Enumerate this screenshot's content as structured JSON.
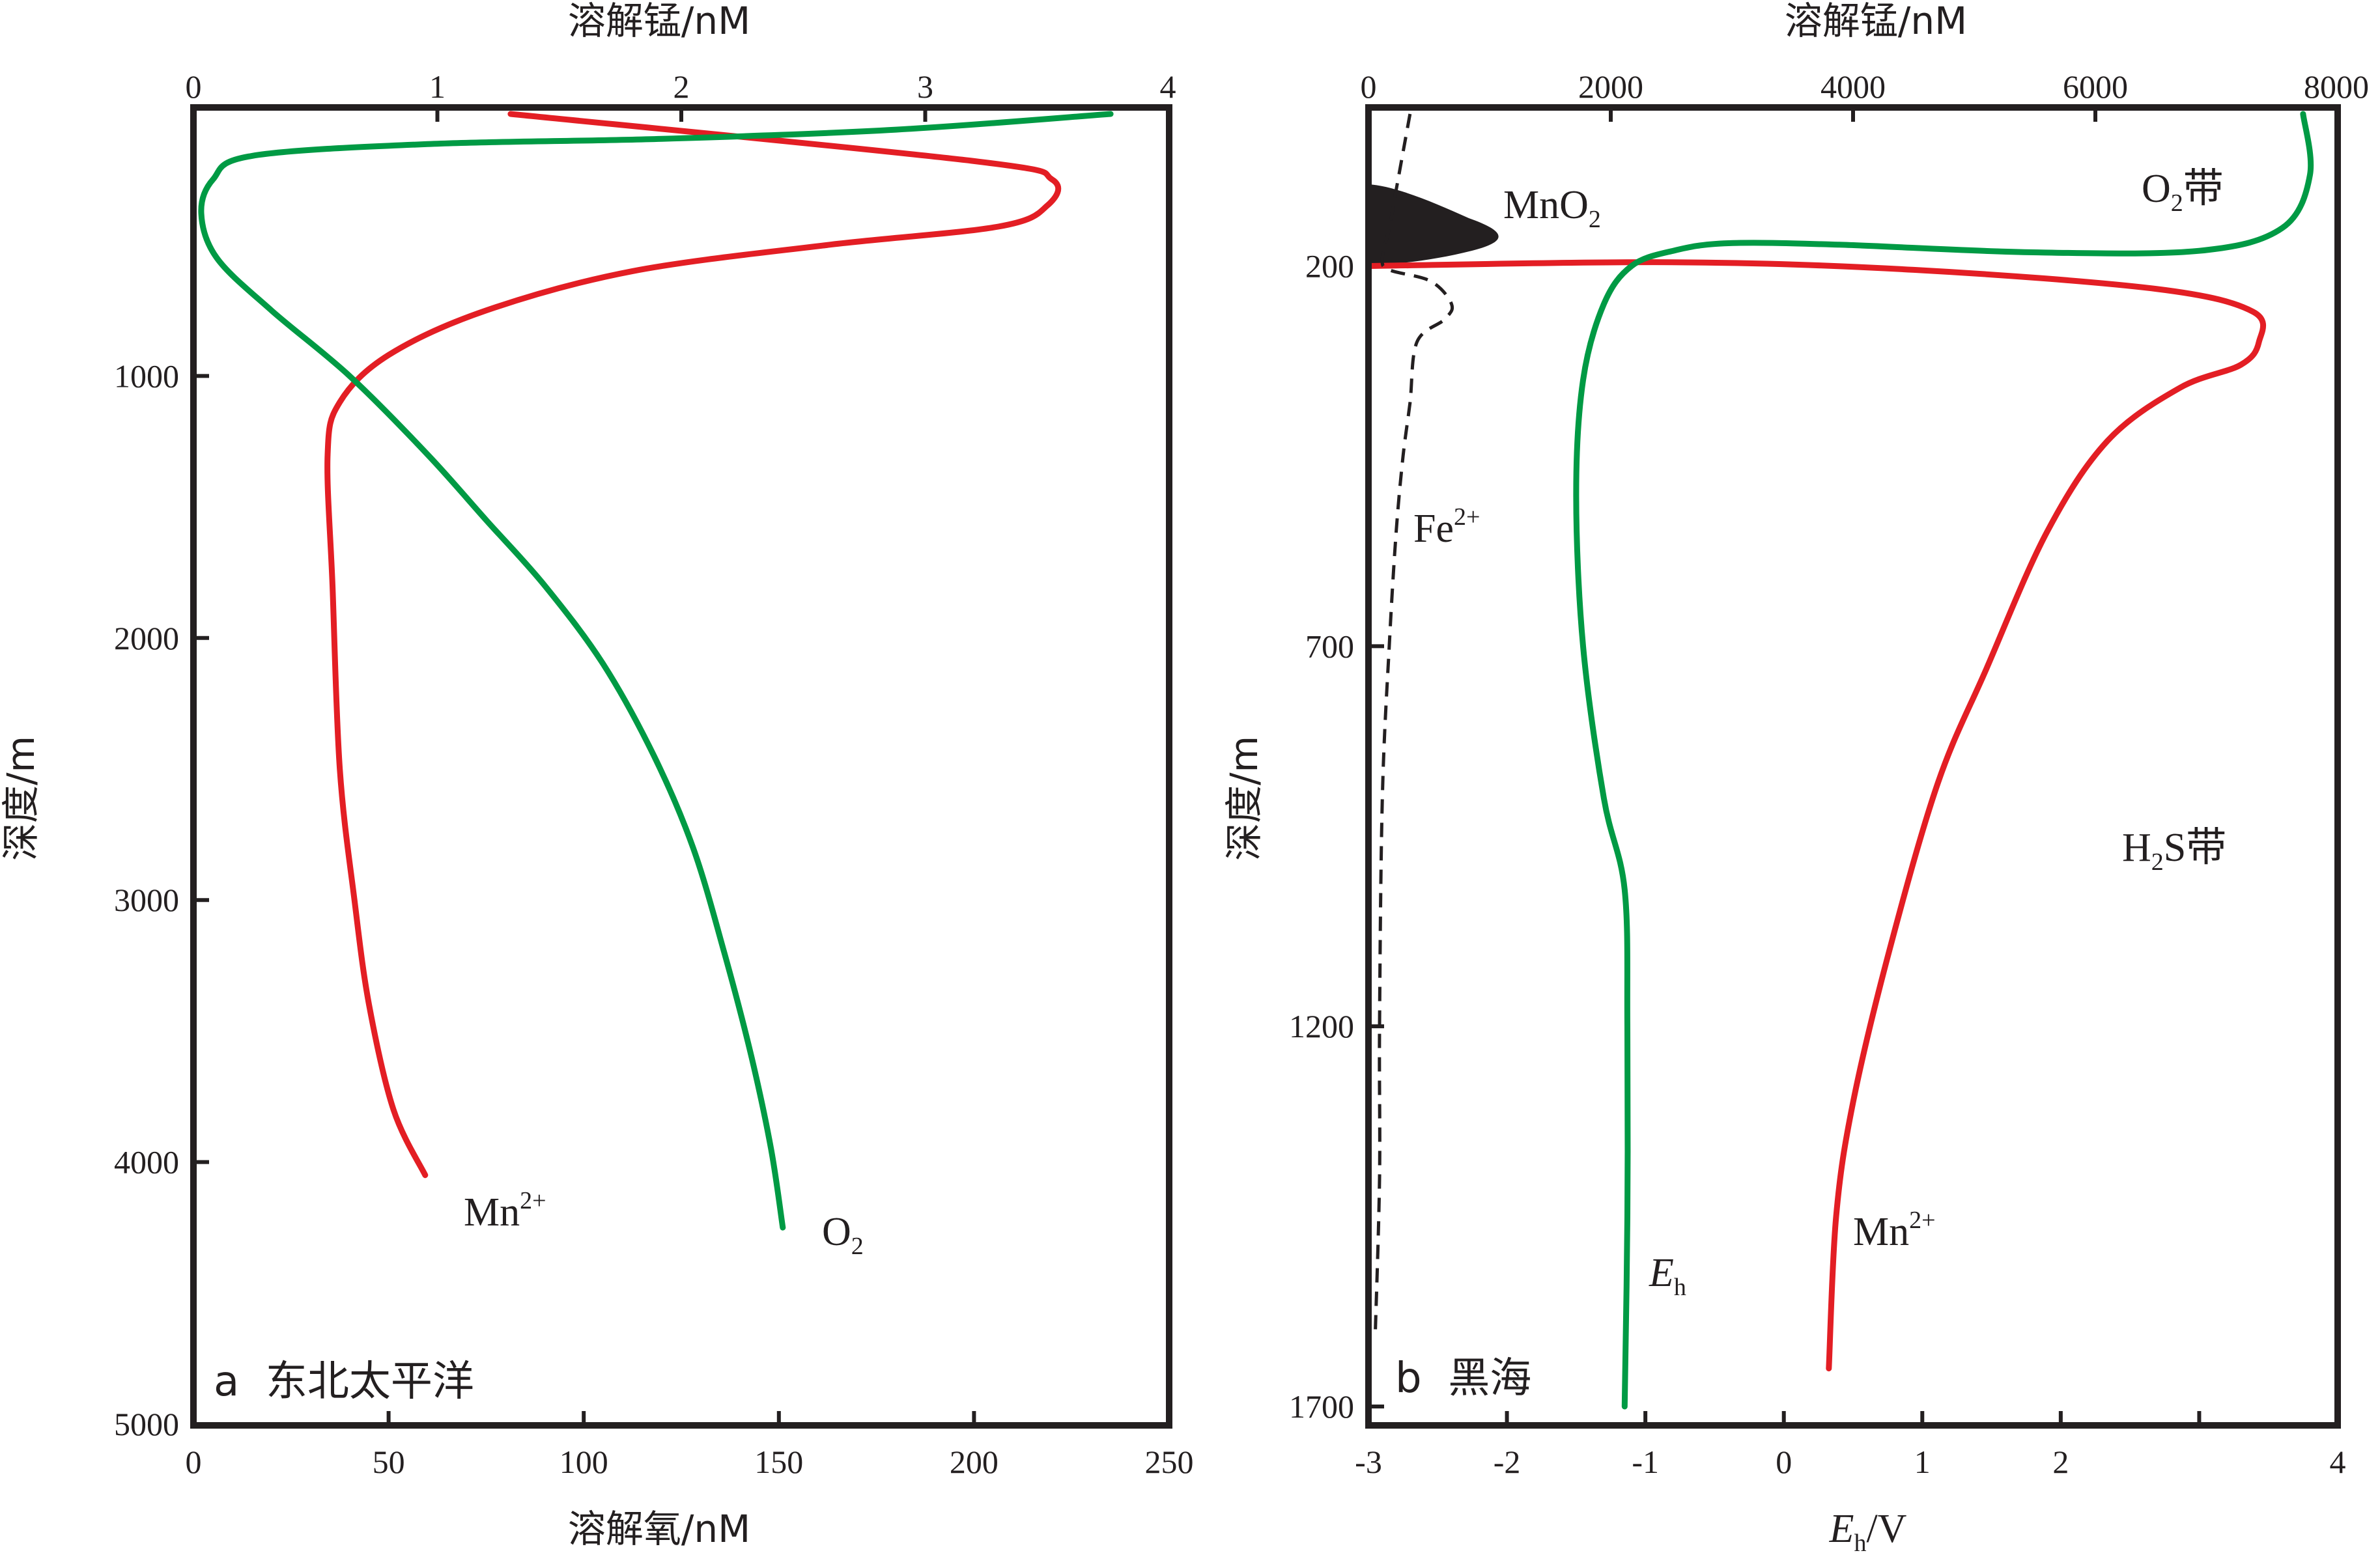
{
  "colors": {
    "mn": "#e31e24",
    "o2": "#009a44",
    "eh": "#009a44",
    "fe": "#231f20",
    "mno2": "#231f20",
    "axis": "#231f20"
  },
  "chart_data": [
    {
      "type": "line",
      "panel_label": "a  东北太平洋",
      "top_axis": {
        "label": "溶解锰/nM",
        "range": [
          0,
          4
        ],
        "ticks": [
          "0",
          "1",
          "2",
          "3",
          "4"
        ]
      },
      "bottom_axis": {
        "label": "溶解氧/nM",
        "range": [
          0,
          250
        ],
        "ticks": [
          "0",
          "50",
          "100",
          "150",
          "200",
          "250"
        ]
      },
      "y_axis": {
        "label": "深度/m",
        "range": [
          0,
          5000
        ],
        "inverted": true,
        "ticks": [
          "1000",
          "2000",
          "3000",
          "4000",
          "5000"
        ]
      },
      "series": [
        {
          "name": "Mn",
          "name_sup": "2+",
          "axis": "top",
          "color": "#e31e24",
          "points": [
            [
              1.3,
              0
            ],
            [
              3.2,
              180
            ],
            [
              3.52,
              250
            ],
            [
              3.5,
              350
            ],
            [
              3.3,
              430
            ],
            [
              2.6,
              500
            ],
            [
              1.8,
              600
            ],
            [
              1.2,
              750
            ],
            [
              0.8,
              920
            ],
            [
              0.6,
              1100
            ],
            [
              0.55,
              1300
            ],
            [
              0.57,
              1800
            ],
            [
              0.6,
              2500
            ],
            [
              0.66,
              3000
            ],
            [
              0.72,
              3400
            ],
            [
              0.82,
              3800
            ],
            [
              0.95,
              4050
            ]
          ]
        },
        {
          "name": "O",
          "name_sub": "2",
          "axis": "bottom",
          "color": "#009a44",
          "points": [
            [
              235,
              0
            ],
            [
              180,
              60
            ],
            [
              120,
              95
            ],
            [
              60,
              115
            ],
            [
              15,
              160
            ],
            [
              5,
              250
            ],
            [
              2,
              380
            ],
            [
              6,
              550
            ],
            [
              20,
              750
            ],
            [
              40,
              1000
            ],
            [
              60,
              1300
            ],
            [
              75,
              1550
            ],
            [
              90,
              1800
            ],
            [
              105,
              2100
            ],
            [
              118,
              2450
            ],
            [
              128,
              2800
            ],
            [
              136,
              3200
            ],
            [
              143,
              3600
            ],
            [
              148,
              3950
            ],
            [
              151,
              4250
            ]
          ]
        }
      ]
    },
    {
      "type": "line",
      "panel_label": "b  黑海",
      "top_axis": {
        "label": "溶解锰/nM",
        "range": [
          0,
          8000
        ],
        "ticks": [
          "0",
          "2000",
          "4000",
          "6000",
          "8000"
        ]
      },
      "bottom_axis": {
        "label": "E",
        "label_sub": "h",
        "label_unit": "/V",
        "range": [
          -3,
          4
        ],
        "ticks": [
          "-3",
          "-2",
          "-1",
          "0",
          "1",
          "2",
          "4"
        ]
      },
      "y_axis": {
        "label": "深度/m",
        "range": [
          0,
          1700
        ],
        "inverted": true,
        "ticks": [
          "200",
          "700",
          "1200",
          "1700"
        ]
      },
      "annotations": [
        "MnO₂",
        "O₂带",
        "H₂S带",
        "Fe²⁺",
        "Mn²⁺",
        "Eₕ"
      ],
      "series": [
        {
          "name": "Mn",
          "name_sup": "2+",
          "axis": "top",
          "color": "#e31e24",
          "points": [
            [
              0,
              200
            ],
            [
              2500,
              195
            ],
            [
              4500,
              205
            ],
            [
              6500,
              230
            ],
            [
              7300,
              260
            ],
            [
              7350,
              300
            ],
            [
              7200,
              330
            ],
            [
              6700,
              360
            ],
            [
              6100,
              430
            ],
            [
              5600,
              550
            ],
            [
              5100,
              730
            ],
            [
              4700,
              880
            ],
            [
              4300,
              1100
            ],
            [
              4000,
              1300
            ],
            [
              3860,
              1450
            ],
            [
              3800,
              1650
            ]
          ]
        },
        {
          "name": "E",
          "name_sub": "h",
          "axis": "bottom",
          "color": "#009a44",
          "points": [
            [
              3.75,
              0
            ],
            [
              3.8,
              80
            ],
            [
              3.6,
              150
            ],
            [
              3.0,
              180
            ],
            [
              1.8,
              182
            ],
            [
              0.4,
              172
            ],
            [
              -0.4,
              170
            ],
            [
              -0.8,
              180
            ],
            [
              -1.1,
              200
            ],
            [
              -1.3,
              250
            ],
            [
              -1.45,
              350
            ],
            [
              -1.5,
              500
            ],
            [
              -1.45,
              700
            ],
            [
              -1.3,
              900
            ],
            [
              -1.15,
              1020
            ],
            [
              -1.13,
              1200
            ],
            [
              -1.13,
              1450
            ],
            [
              -1.15,
              1700
            ]
          ]
        },
        {
          "name": "Fe",
          "name_sup": "2+",
          "axis": "bottom",
          "dashed": true,
          "color": "#231f20",
          "points": [
            [
              -2.7,
              0
            ],
            [
              -2.8,
              100
            ],
            [
              -2.85,
              150
            ],
            [
              -2.9,
              190
            ],
            [
              -2.85,
              205
            ],
            [
              -2.55,
              220
            ],
            [
              -2.4,
              250
            ],
            [
              -2.45,
              270
            ],
            [
              -2.65,
              300
            ],
            [
              -2.7,
              380
            ],
            [
              -2.75,
              450
            ],
            [
              -2.8,
              550
            ],
            [
              -2.85,
              700
            ],
            [
              -2.9,
              900
            ],
            [
              -2.92,
              1200
            ],
            [
              -2.92,
              1400
            ],
            [
              -2.95,
              1600
            ]
          ]
        }
      ]
    }
  ],
  "labels": {
    "a_top_title": "溶解锰/nM",
    "a_bottom_title": "溶解氧/nM",
    "a_y_title": "深度/m",
    "a_panel": "a  东北太平洋",
    "a_mn": "Mn",
    "a_mn_sup": "2+",
    "a_o2": "O",
    "a_o2_sub": "2",
    "b_top_title": "溶解锰/nM",
    "b_y_title": "深度/m",
    "b_panel": "b  黑海",
    "b_bottom_E": "E",
    "b_bottom_sub": "h",
    "b_bottom_unit": "/V",
    "b_mno2": "MnO",
    "b_mno2_sub": "2",
    "b_o2band": "O",
    "b_o2band_sub": "2",
    "b_o2band_word": "带",
    "b_h2s_H": "H",
    "b_h2s_sub": "2",
    "b_h2s_rest": "S带",
    "b_fe": "Fe",
    "b_fe_sup": "2+",
    "b_mn": "Mn",
    "b_mn_sup": "2+",
    "b_eh": "E",
    "b_eh_sub": "h"
  }
}
